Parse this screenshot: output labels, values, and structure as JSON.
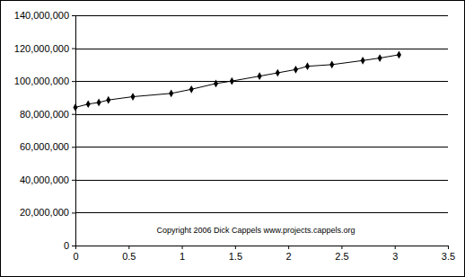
{
  "chart_data": {
    "type": "line",
    "annotations": [
      "Copyright 2006 Dick Cappels www.projects.cappels.org"
    ],
    "x": [
      0,
      0.12,
      0.22,
      0.31,
      0.54,
      0.9,
      1.09,
      1.32,
      1.47,
      1.73,
      1.9,
      2.07,
      2.18,
      2.41,
      2.7,
      2.86,
      3.04
    ],
    "values": [
      84000000,
      86000000,
      87000000,
      88500000,
      90500000,
      92500000,
      95000000,
      98500000,
      100000000,
      103000000,
      105000000,
      107000000,
      109000000,
      110000000,
      112500000,
      114000000,
      116000000
    ],
    "color": "#000000",
    "marker": "diamond",
    "line_style": "solid",
    "xlim": [
      0,
      3.5
    ],
    "xticks": [
      0,
      0.5,
      1,
      1.5,
      2,
      2.5,
      3,
      3.5
    ],
    "ylim": [
      0,
      140000000
    ],
    "yticks": [
      0,
      {
        "value": 20000000,
        "label": "20,000,000"
      },
      {
        "value": 40000000,
        "label": "40,000,000"
      },
      {
        "value": 60000000,
        "label": "60,000,000"
      },
      {
        "value": 80000000,
        "label": "80,000,000"
      },
      {
        "value": 100000000,
        "label": "100,000,000"
      },
      {
        "value": 120000000,
        "label": "120,000,000"
      },
      {
        "value": 140000000,
        "label": "140,000,000"
      }
    ],
    "grid": true
  }
}
